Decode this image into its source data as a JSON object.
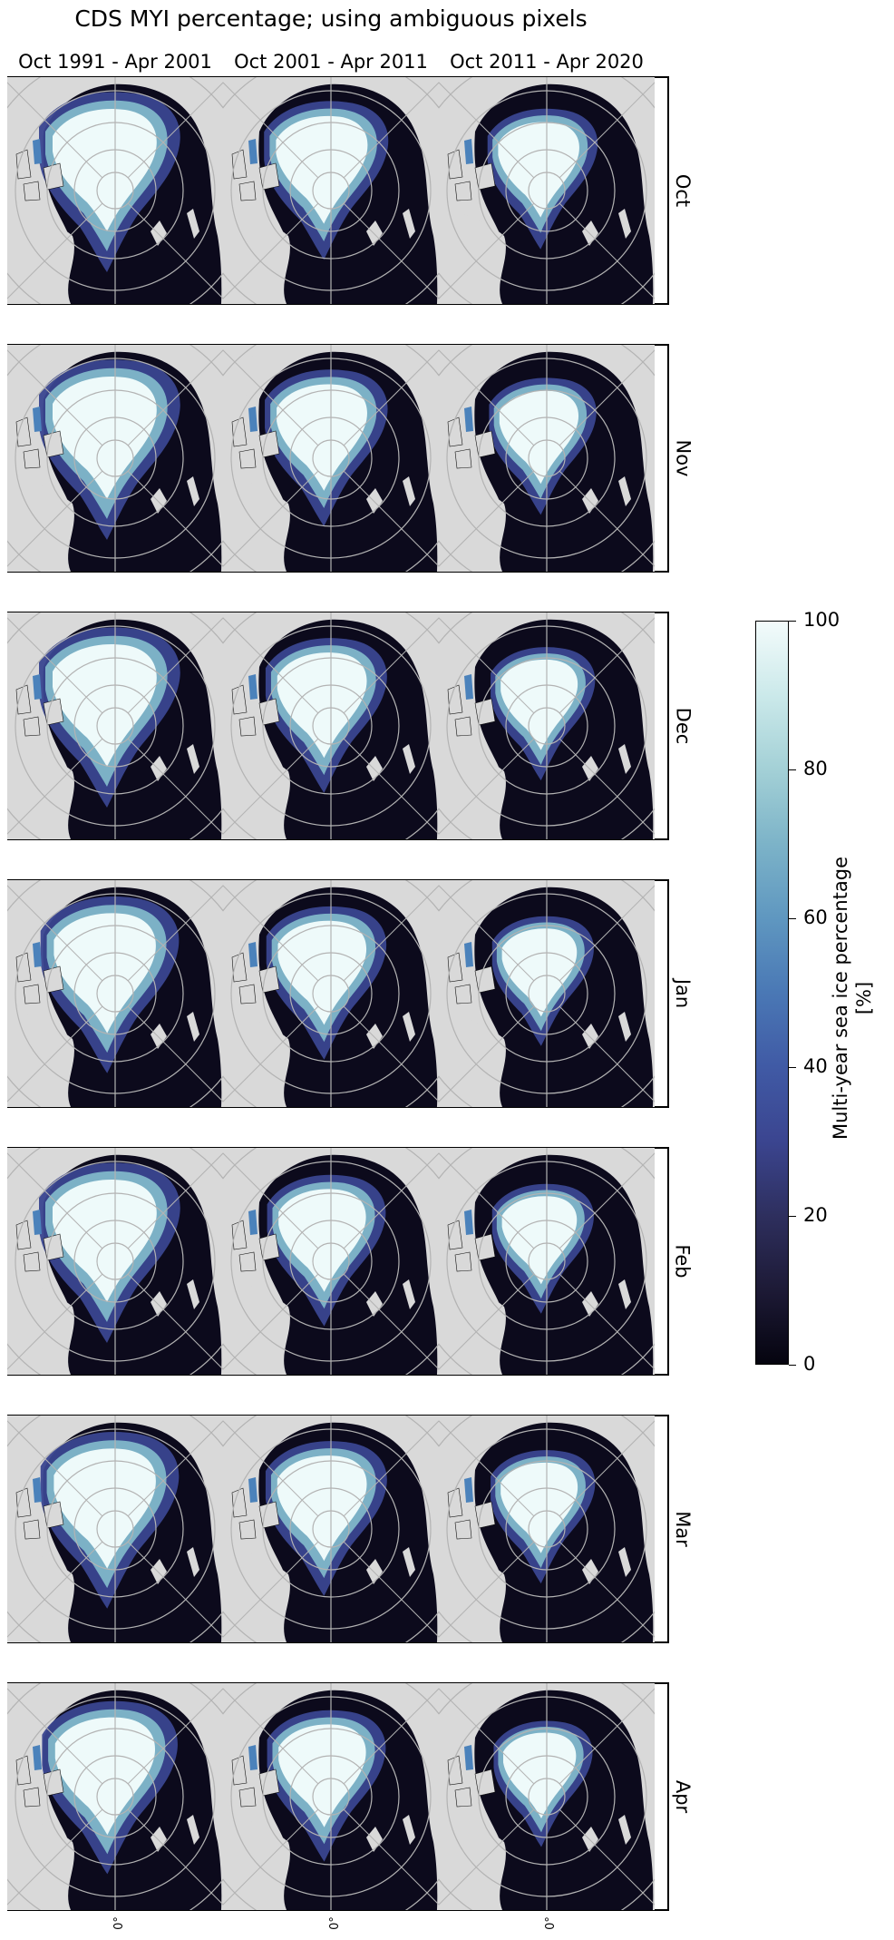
{
  "chart_data": {
    "type": "heatmap",
    "title": "CDS MYI percentage; using ambiguous pixels",
    "columns": [
      "Oct 1991 - Apr 2001",
      "Oct 2001 - Apr 2011",
      "Oct 2011 - Apr 2020"
    ],
    "rows": [
      "Oct",
      "Nov",
      "Dec",
      "Jan",
      "Feb",
      "Mar",
      "Apr"
    ],
    "colorbar": {
      "label_line1": "Multi-year sea ice percentage",
      "label_line2": "[%]",
      "range": [
        0,
        100
      ],
      "ticks": [
        "0",
        "20",
        "40",
        "60",
        "80",
        "100"
      ]
    },
    "bottom_tick": "0°",
    "myi_extent_relative": [
      [
        1.0,
        0.88,
        0.78
      ],
      [
        1.0,
        0.87,
        0.76
      ],
      [
        1.0,
        0.86,
        0.74
      ],
      [
        0.98,
        0.85,
        0.72
      ],
      [
        1.0,
        0.84,
        0.72
      ],
      [
        0.98,
        0.86,
        0.74
      ],
      [
        0.96,
        0.84,
        0.7
      ]
    ],
    "colors": {
      "land": "#d9d9d9",
      "ocean": "#0c0a1c",
      "myi_high": "#eefafa",
      "myi_mid": "#7fb7c9",
      "myi_low": "#3a4690",
      "grid": "#b3b3b3"
    }
  }
}
